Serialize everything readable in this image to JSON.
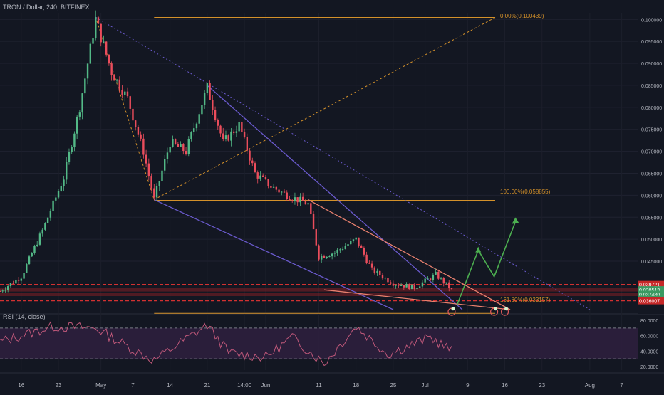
{
  "header": {
    "title": "TRON / Dollar, 240, BITFINEX"
  },
  "colors": {
    "background": "#131722",
    "up": "#53b987",
    "down": "#eb4d5c",
    "fib": "#d4912a",
    "trend_blue": "#6a5acd",
    "trend_salmon": "#e8806e",
    "sr_red": "#d33131",
    "rsi_line": "#c0587a",
    "rsi_band": "#2d1f3d",
    "arrow_green": "#4caf50",
    "axis_text": "#b2b5be"
  },
  "price_axis": {
    "ticks": [
      "0.100000",
      "0.095000",
      "0.090000",
      "0.085000",
      "0.080000",
      "0.075000",
      "0.070000",
      "0.065000",
      "0.060000",
      "0.055000",
      "0.050000",
      "0.045000"
    ],
    "badges": [
      {
        "label": "0.039721",
        "value": 0.039721,
        "kind": "red"
      },
      {
        "label": "0.038513",
        "value": 0.038513,
        "kind": "green"
      },
      {
        "label": "0.037480",
        "value": 0.03748,
        "kind": "green"
      },
      {
        "label": "03:51:46",
        "value": 0.03635,
        "kind": "green"
      },
      {
        "label": "0.036007",
        "value": 0.036007,
        "kind": "red"
      }
    ]
  },
  "rsi": {
    "label": "RSI (14, close)",
    "ticks": [
      "80.0000",
      "60.0000",
      "40.0000",
      "20.0000"
    ]
  },
  "time_axis": {
    "labels": [
      "16",
      "23",
      "May",
      "7",
      "14",
      "21",
      "14:00",
      "Jun",
      "11",
      "18",
      "25",
      "Jul",
      "9",
      "16",
      "23",
      "Aug",
      "7"
    ]
  },
  "annotations": {
    "fib_0": "0.00%(0.100439)",
    "fib_100": "100.00%(0.058855)",
    "fib_161": "161.80%(0.033157)"
  },
  "chart_data": {
    "type": "candlestick",
    "title": "TRON / Dollar, 240, BITFINEX",
    "ylim": [
      0.034,
      0.1015
    ],
    "rsi_ylim": [
      20,
      80
    ],
    "rsi_levels": [
      70,
      30
    ],
    "x_range": [
      "2018-04-12",
      "2018-08-10"
    ],
    "price_path": [
      {
        "date": "2018-04-12",
        "price": 0.0382
      },
      {
        "date": "2018-04-16",
        "price": 0.0415
      },
      {
        "date": "2018-04-20",
        "price": 0.052
      },
      {
        "date": "2018-04-24",
        "price": 0.064
      },
      {
        "date": "2018-04-27",
        "price": 0.08
      },
      {
        "date": "2018-04-30",
        "price": 0.1
      },
      {
        "date": "2018-05-03",
        "price": 0.088
      },
      {
        "date": "2018-05-06",
        "price": 0.082
      },
      {
        "date": "2018-05-09",
        "price": 0.07
      },
      {
        "date": "2018-05-11",
        "price": 0.059
      },
      {
        "date": "2018-05-14",
        "price": 0.072
      },
      {
        "date": "2018-05-17",
        "price": 0.07
      },
      {
        "date": "2018-05-21",
        "price": 0.0845
      },
      {
        "date": "2018-05-24",
        "price": 0.072
      },
      {
        "date": "2018-05-27",
        "price": 0.076
      },
      {
        "date": "2018-05-30",
        "price": 0.065
      },
      {
        "date": "2018-06-02",
        "price": 0.062
      },
      {
        "date": "2018-06-05",
        "price": 0.06
      },
      {
        "date": "2018-06-09",
        "price": 0.058
      },
      {
        "date": "2018-06-11",
        "price": 0.046
      },
      {
        "date": "2018-06-14",
        "price": 0.047
      },
      {
        "date": "2018-06-18",
        "price": 0.05
      },
      {
        "date": "2018-06-21",
        "price": 0.043
      },
      {
        "date": "2018-06-25",
        "price": 0.04
      },
      {
        "date": "2018-06-29",
        "price": 0.039
      },
      {
        "date": "2018-07-03",
        "price": 0.042
      },
      {
        "date": "2018-07-06",
        "price": 0.0385
      }
    ],
    "fib_levels": [
      {
        "label": "0.00%",
        "value": 0.100439
      },
      {
        "label": "100.00%",
        "value": 0.058855
      },
      {
        "label": "161.80%",
        "value": 0.033157
      }
    ],
    "horizontal_levels": [
      0.039721,
      0.038513,
      0.03748,
      0.036007
    ],
    "trendlines": [
      {
        "name": "descending-top",
        "from": {
          "date": "2018-04-30",
          "price": 0.1005
        },
        "to": {
          "date": "2018-08-01",
          "price": 0.034
        }
      },
      {
        "name": "channel-upper",
        "from": {
          "date": "2018-05-21",
          "price": 0.085
        },
        "to": {
          "date": "2018-07-08",
          "price": 0.034
        }
      },
      {
        "name": "channel-lower",
        "from": {
          "date": "2018-05-11",
          "price": 0.059
        },
        "to": {
          "date": "2018-06-25",
          "price": 0.034
        }
      },
      {
        "name": "wedge-upper",
        "from": {
          "date": "2018-06-09",
          "price": 0.059
        },
        "to": {
          "date": "2018-07-17",
          "price": 0.034
        }
      },
      {
        "name": "wedge-lower",
        "from": {
          "date": "2018-06-12",
          "price": 0.0385
        },
        "to": {
          "date": "2018-07-17",
          "price": 0.034
        }
      }
    ],
    "projection_arrow": [
      {
        "date": "2018-07-07",
        "price": 0.035
      },
      {
        "date": "2018-07-11",
        "price": 0.0475
      },
      {
        "date": "2018-07-14",
        "price": 0.0415
      },
      {
        "date": "2018-07-18",
        "price": 0.054
      }
    ],
    "rsi_path": [
      {
        "date": "2018-04-12",
        "value": 52
      },
      {
        "date": "2018-04-22",
        "value": 72
      },
      {
        "date": "2018-04-30",
        "value": 70
      },
      {
        "date": "2018-05-07",
        "value": 42
      },
      {
        "date": "2018-05-11",
        "value": 28
      },
      {
        "date": "2018-05-21",
        "value": 74
      },
      {
        "date": "2018-05-25",
        "value": 38
      },
      {
        "date": "2018-06-01",
        "value": 32
      },
      {
        "date": "2018-06-06",
        "value": 58
      },
      {
        "date": "2018-06-12",
        "value": 24
      },
      {
        "date": "2018-06-18",
        "value": 72
      },
      {
        "date": "2018-06-24",
        "value": 36
      },
      {
        "date": "2018-07-02",
        "value": 58
      },
      {
        "date": "2018-07-06",
        "value": 40
      }
    ]
  }
}
